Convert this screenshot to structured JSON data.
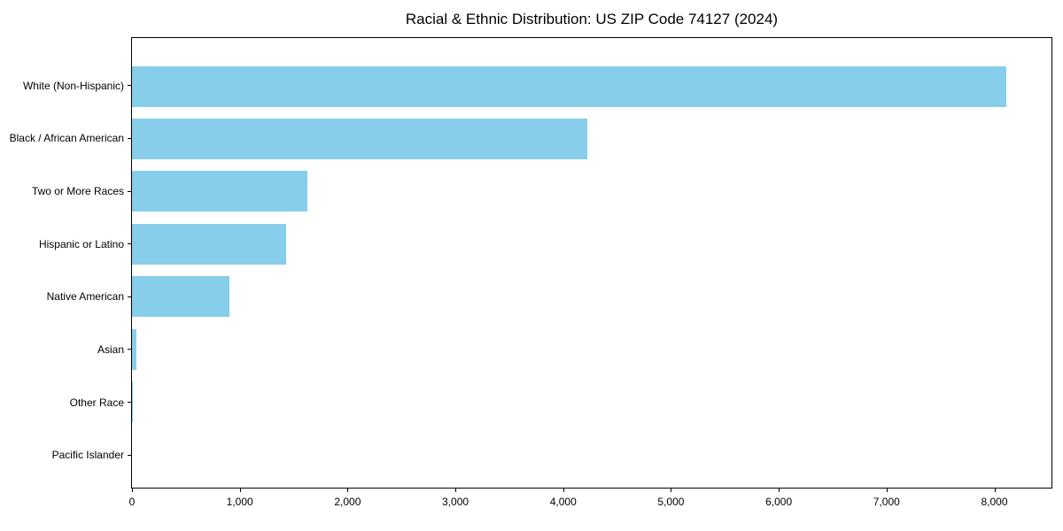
{
  "chart_data": {
    "type": "bar",
    "orientation": "horizontal",
    "title": "Racial & Ethnic Distribution: US ZIP Code 74127 (2024)",
    "categories": [
      "White (Non-Hispanic)",
      "Black / African American",
      "Two or More Races",
      "Hispanic or Latino",
      "Native American",
      "Asian",
      "Other Race",
      "Pacific Islander"
    ],
    "values": [
      8110,
      4220,
      1630,
      1430,
      900,
      40,
      8,
      0
    ],
    "xlabel": "",
    "ylabel": "",
    "xlim": [
      0,
      8530
    ],
    "xticks": [
      {
        "value": 0,
        "label": "0"
      },
      {
        "value": 1000,
        "label": "1,000"
      },
      {
        "value": 2000,
        "label": "2,000"
      },
      {
        "value": 3000,
        "label": "3,000"
      },
      {
        "value": 4000,
        "label": "4,000"
      },
      {
        "value": 5000,
        "label": "5,000"
      },
      {
        "value": 6000,
        "label": "6,000"
      },
      {
        "value": 7000,
        "label": "7,000"
      },
      {
        "value": 8000,
        "label": "8,000"
      }
    ],
    "grid": "off",
    "legend": "none",
    "bar_color": "#87CEEB",
    "frame_color": "#000000",
    "text_color": "#000000",
    "background_color": "#ffffff"
  }
}
